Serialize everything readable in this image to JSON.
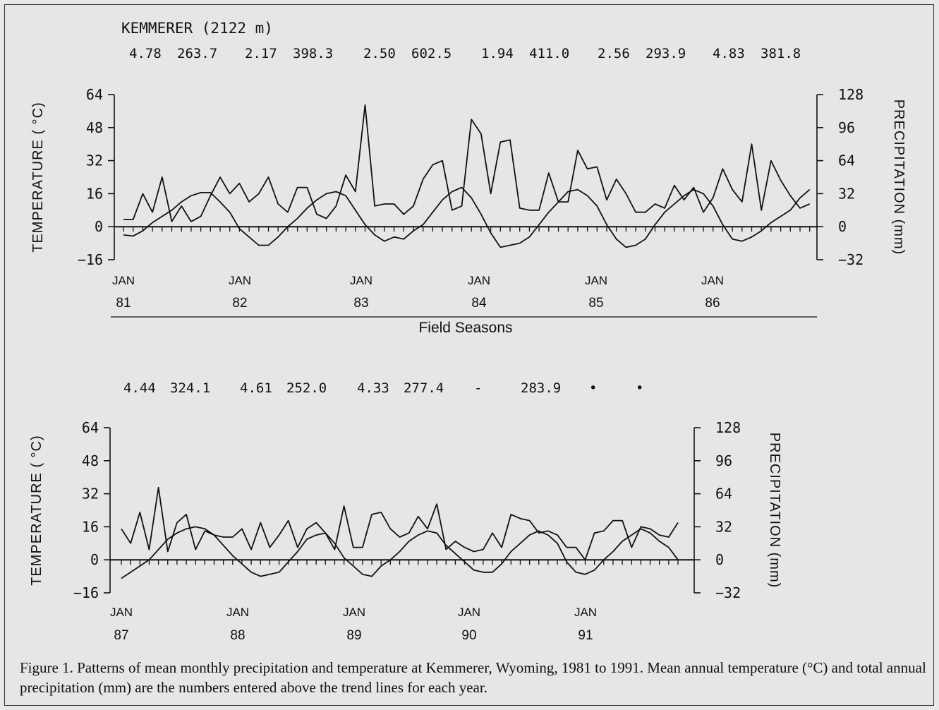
{
  "station_label": "KEMMERER (2122 m)",
  "caption": "Figure 1.  Patterns of mean monthly precipitation and temperature at Kemmerer, Wyoming, 1981 to 1991.  Mean annual temperature (°C) and total annual precipitation (mm) are the numbers entered above the trend lines for each year.",
  "colors": {
    "background": "#e6e6e6",
    "ink": "#111111"
  },
  "chart_data": [
    {
      "type": "line",
      "xlabel": "Field Seasons",
      "ylabel_left": "TEMPERATURE ( °C)",
      "ylabel_right": "PRECIPITATION (mm)",
      "ylim_left": [
        -16,
        64
      ],
      "ylim_right": [
        -32,
        128
      ],
      "yticks_left": [
        "64",
        "48",
        "32",
        "16",
        "0",
        "−16"
      ],
      "yticks_right": [
        "128",
        "96",
        "64",
        "32",
        "0",
        "−32"
      ],
      "x_start_month": "JAN 1981",
      "x_months": 72,
      "year_ticks": [
        {
          "month": "JAN",
          "year": "81"
        },
        {
          "month": "JAN",
          "year": "82"
        },
        {
          "month": "JAN",
          "year": "83"
        },
        {
          "month": "JAN",
          "year": "84"
        },
        {
          "month": "JAN",
          "year": "85"
        },
        {
          "month": "JAN",
          "year": "86"
        }
      ],
      "annual_values": [
        {
          "temp": "4.78",
          "precip": "263.7"
        },
        {
          "temp": "2.17",
          "precip": "398.3"
        },
        {
          "temp": "2.50",
          "precip": "602.5"
        },
        {
          "temp": "1.94",
          "precip": "411.0"
        },
        {
          "temp": "2.56",
          "precip": "293.9"
        },
        {
          "temp": "4.83",
          "precip": "381.8"
        }
      ],
      "series": [
        {
          "axis": "left",
          "values": [
            -4,
            -4.5,
            -2,
            2,
            5,
            8,
            12,
            15,
            16.5,
            16.5,
            12,
            7,
            -1,
            -5,
            -9,
            -9,
            -5,
            0,
            4,
            9,
            13,
            16,
            17,
            15,
            8,
            1,
            -4,
            -7,
            -5,
            -6,
            -2,
            1,
            7,
            13,
            17,
            19,
            14,
            6,
            -3,
            -10,
            -9,
            -8,
            -5,
            1,
            7,
            12,
            17,
            18,
            15,
            10,
            1,
            -6,
            -10,
            -9,
            -6,
            1,
            7,
            11,
            15,
            18,
            16,
            10,
            1,
            -6,
            -7,
            -5,
            -2,
            2,
            5,
            8,
            14,
            18
          ]
        },
        {
          "axis": "right",
          "values": [
            7,
            7,
            32,
            14,
            48,
            5,
            20,
            5,
            10,
            30,
            48,
            32,
            42,
            24,
            32,
            48,
            22,
            14,
            38,
            38,
            12,
            8,
            20,
            50,
            34,
            118,
            20,
            22,
            22,
            12,
            20,
            46,
            60,
            64,
            16,
            20,
            104,
            90,
            32,
            82,
            84,
            18,
            16,
            16,
            52,
            24,
            24,
            74,
            56,
            58,
            26,
            46,
            32,
            14,
            14,
            22,
            18,
            40,
            26,
            38,
            14,
            28,
            56,
            36,
            24,
            80,
            16,
            64,
            45,
            30,
            18,
            22
          ]
        }
      ]
    },
    {
      "type": "line",
      "ylabel_left": "TEMPERATURE ( °C)",
      "ylabel_right": "PRECIPITATION (mm)",
      "ylim_left": [
        -16,
        64
      ],
      "ylim_right": [
        -32,
        128
      ],
      "yticks_left": [
        "64",
        "48",
        "32",
        "16",
        "0",
        "−16"
      ],
      "yticks_right": [
        "128",
        "96",
        "64",
        "32",
        "0",
        "−32"
      ],
      "x_start_month": "JAN 1987",
      "x_months": 61,
      "year_ticks": [
        {
          "month": "JAN",
          "year": "87"
        },
        {
          "month": "JAN",
          "year": "88"
        },
        {
          "month": "JAN",
          "year": "89"
        },
        {
          "month": "JAN",
          "year": "90"
        },
        {
          "month": "JAN",
          "year": "91"
        }
      ],
      "annual_values": [
        {
          "temp": "4.44",
          "precip": "324.1"
        },
        {
          "temp": "4.61",
          "precip": "252.0"
        },
        {
          "temp": "4.33",
          "precip": "277.4"
        },
        {
          "temp": "-",
          "precip": "283.9"
        },
        {
          "temp": "•",
          "precip": "•"
        }
      ],
      "series": [
        {
          "axis": "left",
          "values": [
            -9,
            -6,
            -3,
            0,
            5,
            10,
            13,
            15,
            16,
            15,
            12,
            7,
            2,
            -2,
            -6,
            -8,
            -7,
            -6,
            -1,
            4,
            10,
            12,
            13,
            8,
            1,
            -3,
            -7,
            -8,
            -3,
            0,
            4,
            9,
            12,
            14,
            13,
            7,
            3,
            -1,
            -5,
            -6,
            -6,
            -2,
            4,
            8,
            12,
            14,
            12,
            8,
            -1,
            -6,
            -7,
            -5,
            0,
            4,
            9,
            12,
            15,
            13,
            9,
            6,
            0
          ]
        },
        {
          "axis": "right",
          "values": [
            30,
            16,
            46,
            10,
            70,
            8,
            36,
            44,
            10,
            28,
            24,
            22,
            22,
            30,
            10,
            36,
            12,
            24,
            38,
            12,
            30,
            36,
            26,
            10,
            52,
            12,
            12,
            44,
            46,
            30,
            22,
            26,
            42,
            30,
            54,
            10,
            18,
            12,
            8,
            10,
            26,
            12,
            44,
            40,
            38,
            26,
            28,
            24,
            12,
            12,
            0,
            26,
            28,
            38,
            38,
            12,
            32,
            30,
            24,
            22,
            36
          ]
        }
      ]
    }
  ]
}
